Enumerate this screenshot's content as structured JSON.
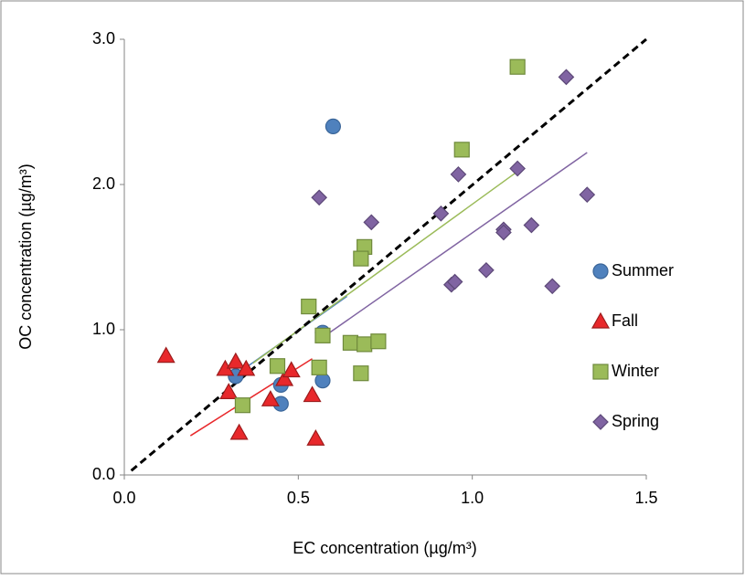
{
  "chart_data": {
    "type": "scatter",
    "xlabel": "EC concentration (µg/m³)",
    "ylabel": "OC concentration (µg/m³)",
    "xlim": [
      0,
      1.5
    ],
    "ylim": [
      0,
      3.0
    ],
    "xticks": [
      {
        "value": 0,
        "label": "0.0"
      },
      {
        "value": 0.5,
        "label": "0.5"
      },
      {
        "value": 1.0,
        "label": "1.0"
      },
      {
        "value": 1.5,
        "label": "1.5"
      }
    ],
    "yticks": [
      {
        "value": 0,
        "label": "0.0"
      },
      {
        "value": 1.0,
        "label": "1.0"
      },
      {
        "value": 2.0,
        "label": "2.0"
      },
      {
        "value": 3.0,
        "label": "3.0"
      }
    ],
    "grid": false,
    "legend": "right",
    "reference_line": {
      "x": [
        0.02,
        1.5
      ],
      "y": [
        0.03,
        3.0
      ],
      "color": "#000000"
    },
    "series": [
      {
        "name": "Summer",
        "color": "#4f81bd",
        "marker": "circle",
        "x": [
          0.6,
          0.57,
          0.32,
          0.45,
          0.45,
          0.57
        ],
        "values": [
          2.4,
          0.98,
          0.68,
          0.62,
          0.49,
          0.65
        ],
        "trendline": {
          "x": [
            0.32,
            0.64
          ],
          "y": [
            0.69,
            1.23
          ]
        }
      },
      {
        "name": "Fall",
        "color": "#e8282b",
        "marker": "triangle",
        "x": [
          0.12,
          0.29,
          0.32,
          0.35,
          0.3,
          0.33,
          0.42,
          0.46,
          0.48,
          0.54,
          0.55
        ],
        "values": [
          0.82,
          0.73,
          0.78,
          0.73,
          0.57,
          0.29,
          0.52,
          0.66,
          0.72,
          0.55,
          0.25
        ],
        "trendline": {
          "x": [
            0.19,
            0.54
          ],
          "y": [
            0.27,
            0.8
          ]
        }
      },
      {
        "name": "Winter",
        "color": "#9bbb59",
        "marker": "square",
        "x": [
          1.13,
          0.97,
          0.69,
          0.68,
          0.53,
          0.57,
          0.65,
          0.69,
          0.73,
          0.56,
          0.44,
          0.68,
          0.34
        ],
        "values": [
          2.81,
          2.24,
          1.57,
          1.49,
          1.16,
          0.96,
          0.91,
          0.9,
          0.92,
          0.74,
          0.75,
          0.7,
          0.48
        ],
        "trendline": {
          "x": [
            0.37,
            1.13
          ],
          "y": [
            0.77,
            2.09
          ]
        }
      },
      {
        "name": "Spring",
        "color": "#8064a2",
        "marker": "diamond",
        "x": [
          1.27,
          1.13,
          0.96,
          0.56,
          0.91,
          0.71,
          1.17,
          1.09,
          1.09,
          1.33,
          1.04,
          0.94,
          0.95,
          1.23
        ],
        "values": [
          2.74,
          2.11,
          2.07,
          1.91,
          1.8,
          1.74,
          1.72,
          1.69,
          1.67,
          1.93,
          1.41,
          1.31,
          1.33,
          1.3
        ],
        "trendline": {
          "x": [
            0.56,
            1.33
          ],
          "y": [
            0.93,
            2.22
          ]
        }
      }
    ]
  }
}
